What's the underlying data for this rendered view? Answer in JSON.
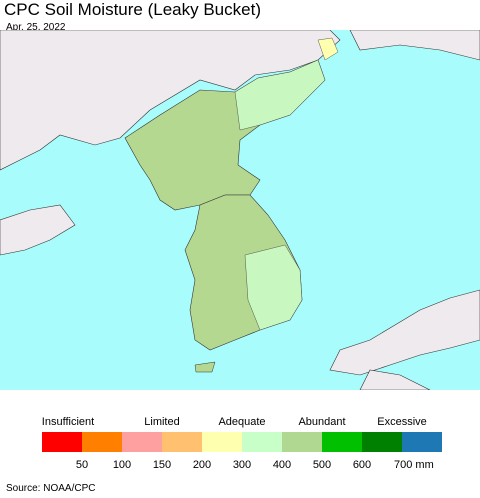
{
  "header": {
    "title": "CPC Soil Moisture (Leaky Bucket)",
    "date": "Apr. 25, 2022"
  },
  "legend": {
    "categories": [
      "Insufficient",
      "Limited",
      "Adequate",
      "Abundant",
      "Excessive"
    ],
    "colors": [
      "#ff0000",
      "#ff8000",
      "#ffa0a0",
      "#ffc070",
      "#ffffb0",
      "#c8ffc8",
      "#b0d890",
      "#00c000",
      "#008000",
      "#1e78b4"
    ],
    "ticks": [
      "50",
      "100",
      "150",
      "200",
      "300",
      "400",
      "500",
      "600",
      "700 mm"
    ]
  },
  "footer": {
    "source": "Source: NOAA/CPC"
  }
}
